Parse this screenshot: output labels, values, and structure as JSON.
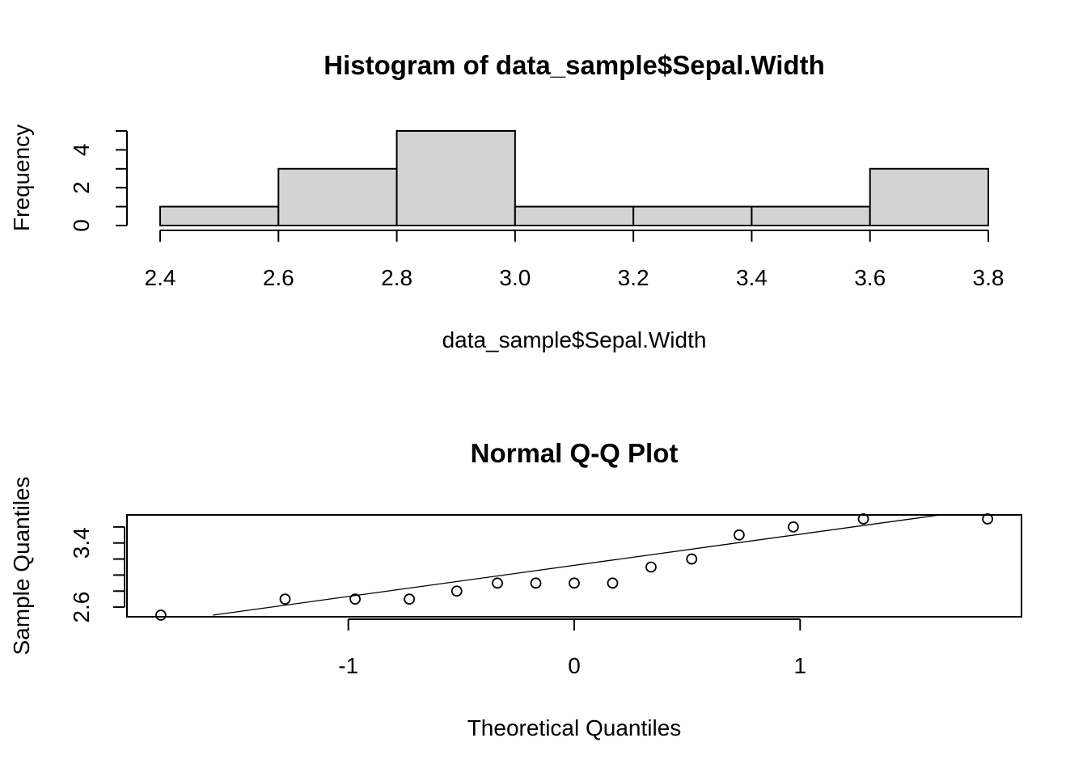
{
  "chart_data": [
    {
      "type": "bar",
      "title": "Histogram of data_sample$Sepal.Width",
      "xlabel": "data_sample$Sepal.Width",
      "ylabel": "Frequency",
      "bins": [
        {
          "start": 2.4,
          "end": 2.6,
          "count": 1
        },
        {
          "start": 2.6,
          "end": 2.8,
          "count": 3
        },
        {
          "start": 2.8,
          "end": 3.0,
          "count": 5
        },
        {
          "start": 3.0,
          "end": 3.2,
          "count": 1
        },
        {
          "start": 3.2,
          "end": 3.4,
          "count": 1
        },
        {
          "start": 3.4,
          "end": 3.6,
          "count": 1
        },
        {
          "start": 3.6,
          "end": 3.8,
          "count": 3
        }
      ],
      "xlim": [
        2.4,
        3.8
      ],
      "ylim": [
        0,
        5
      ],
      "x_ticks": [
        "2.4",
        "2.6",
        "2.8",
        "3.0",
        "3.2",
        "3.4",
        "3.6",
        "3.8"
      ],
      "y_ticks": [
        "0",
        "2",
        "4"
      ],
      "y_tick_values": [
        0,
        2,
        4
      ],
      "y_minor_ticks": [
        1,
        3,
        5
      ],
      "grid": false
    },
    {
      "type": "scatter",
      "title": "Normal Q-Q Plot",
      "xlabel": "Theoretical Quantiles",
      "ylabel": "Sample Quantiles",
      "points": [
        {
          "x": -1.83,
          "y": 2.5
        },
        {
          "x": -1.28,
          "y": 2.7
        },
        {
          "x": -0.97,
          "y": 2.7
        },
        {
          "x": -0.73,
          "y": 2.7
        },
        {
          "x": -0.52,
          "y": 2.8
        },
        {
          "x": -0.34,
          "y": 2.9
        },
        {
          "x": -0.17,
          "y": 2.9
        },
        {
          "x": 0.0,
          "y": 2.9
        },
        {
          "x": 0.17,
          "y": 2.9
        },
        {
          "x": 0.34,
          "y": 3.1
        },
        {
          "x": 0.52,
          "y": 3.2
        },
        {
          "x": 0.73,
          "y": 3.5
        },
        {
          "x": 0.97,
          "y": 3.6
        },
        {
          "x": 1.28,
          "y": 3.7
        },
        {
          "x": 1.83,
          "y": 3.7
        }
      ],
      "reference_line": {
        "x1": -1.6,
        "y1": 2.5,
        "x2": 1.62,
        "y2": 3.75
      },
      "xlim": [
        -1.98,
        1.98
      ],
      "ylim": [
        2.48,
        3.75
      ],
      "x_ticks": [
        "-1",
        "0",
        "1"
      ],
      "x_tick_values": [
        -1,
        0,
        1
      ],
      "y_ticks": [
        "2.6",
        "3.4"
      ],
      "y_tick_values": [
        2.6,
        3.4
      ],
      "y_minor_ticks": [
        2.8,
        3.0,
        3.2,
        3.6
      ],
      "grid": false
    }
  ]
}
